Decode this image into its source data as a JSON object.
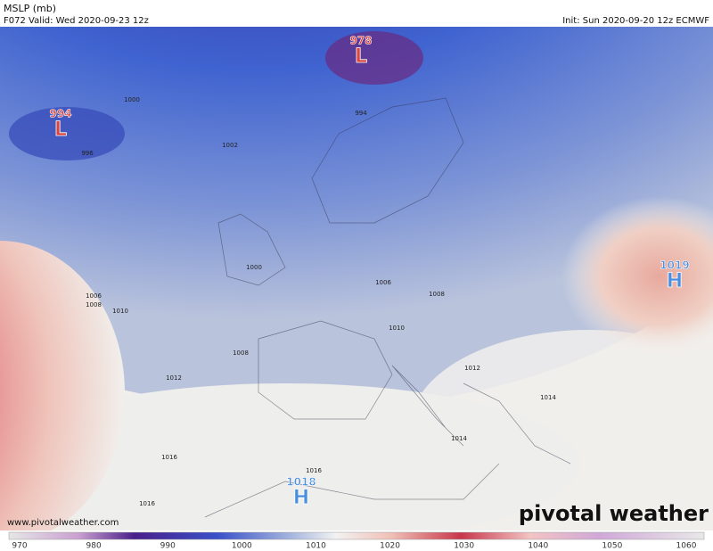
{
  "header": {
    "title": "MSLP (mb)",
    "valid": "F072 Valid: Wed 2020-09-23 12z",
    "init": "Init: Sun 2020-09-20 12z ECMWF"
  },
  "pressure_centers": [
    {
      "letter": "L",
      "value": 994
    },
    {
      "letter": "L",
      "value": 978
    },
    {
      "letter": "H",
      "value": 1019
    },
    {
      "letter": "H",
      "value": 1018
    }
  ],
  "isobar_labels": [
    1000,
    996,
    1002,
    1000,
    1006,
    1008,
    1010,
    1008,
    1006,
    1008,
    1010,
    1012,
    1012,
    1014,
    1016,
    1016,
    1014,
    1016,
    994
  ],
  "colorbar": {
    "ticks": [
      970,
      980,
      990,
      1000,
      1010,
      1020,
      1030,
      1040,
      1050,
      1060
    ]
  },
  "watermark": "www.pivotalweather.com",
  "logo": "pivotal weather"
}
